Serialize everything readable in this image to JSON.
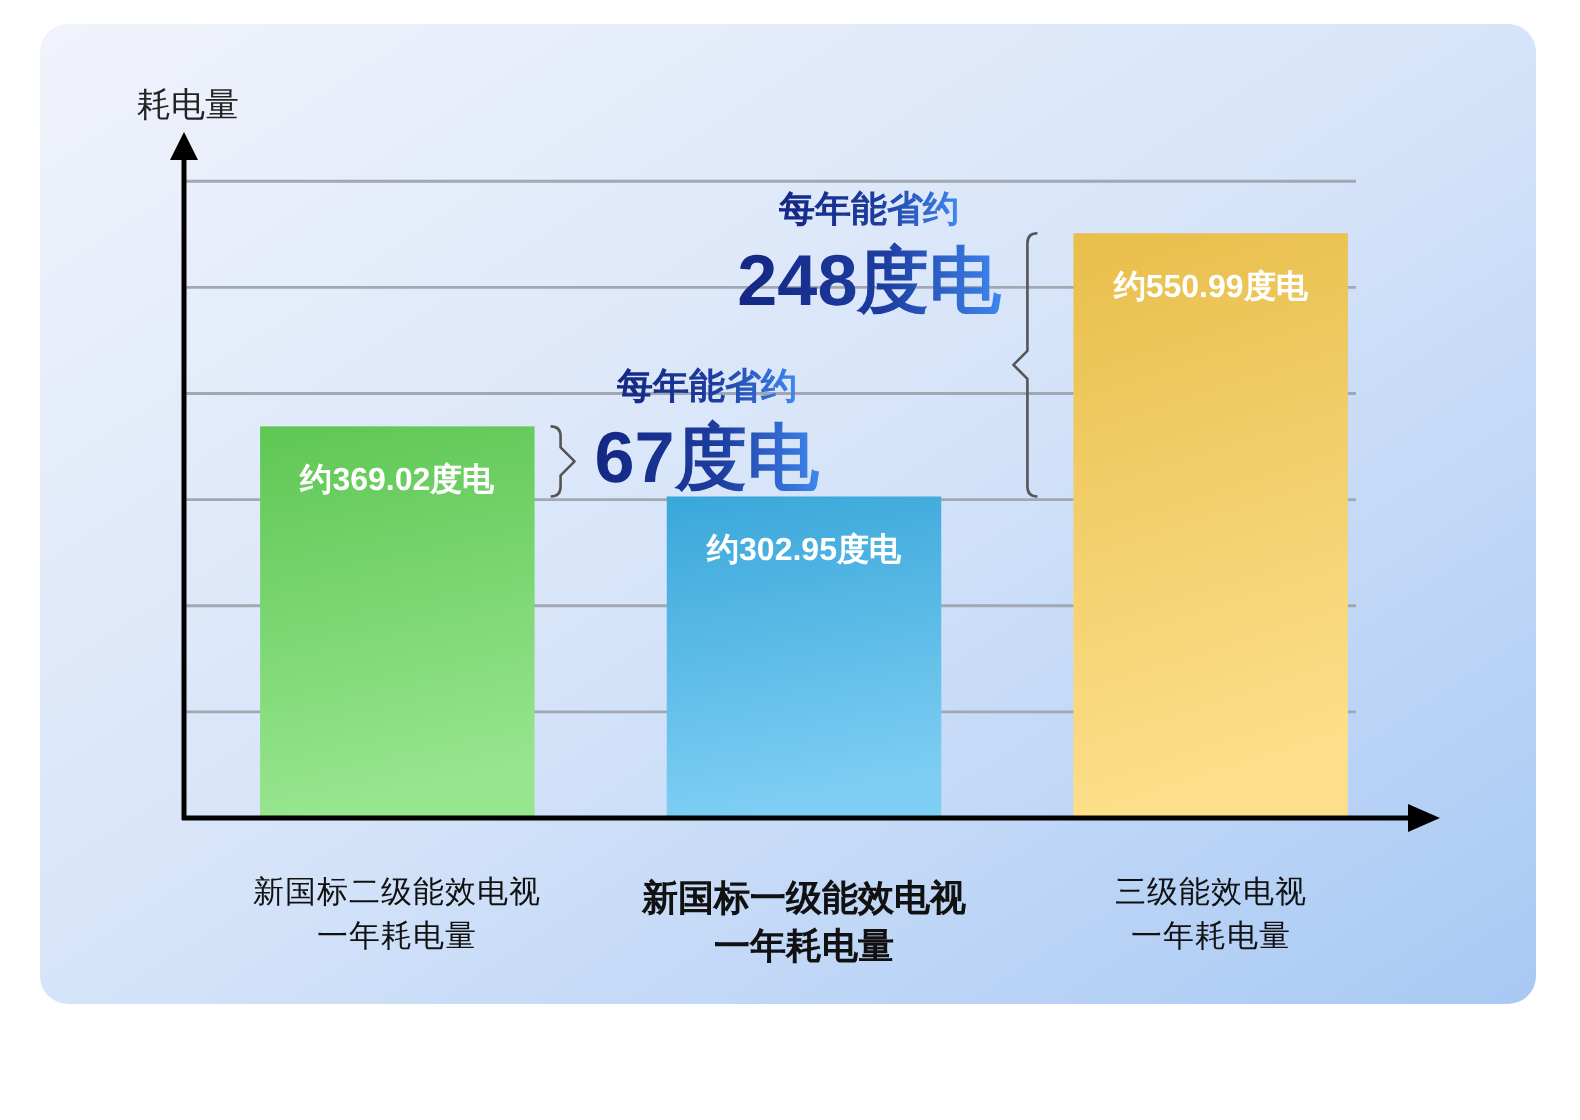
{
  "chart_data": {
    "type": "bar",
    "ylabel": "耗电量",
    "categories": [
      "新国标二级能效电视一年耗电量",
      "新国标一级能效电视一年耗电量",
      "三级能效电视一年耗电量"
    ],
    "values": [
      369.02,
      302.95,
      550.99
    ],
    "colors": [
      "#66d85a",
      "#3eb6ed",
      "#fccf52"
    ],
    "value_labels": [
      "约369.02度电",
      "约302.95度电",
      "约550.99度电"
    ],
    "ylim": [
      0,
      620
    ],
    "yticks": [
      {
        "value": 100,
        "label": null
      },
      {
        "value": 200,
        "label": null
      },
      {
        "value": 300,
        "label": null
      },
      {
        "value": 400,
        "label": null
      },
      {
        "value": 500,
        "label": null
      },
      {
        "value": 600,
        "label": null
      }
    ],
    "grid": "y",
    "tick_labels": "x",
    "annotations": [
      "每年能省约\n67度电",
      "每年能省约\n248度电"
    ]
  }
}
